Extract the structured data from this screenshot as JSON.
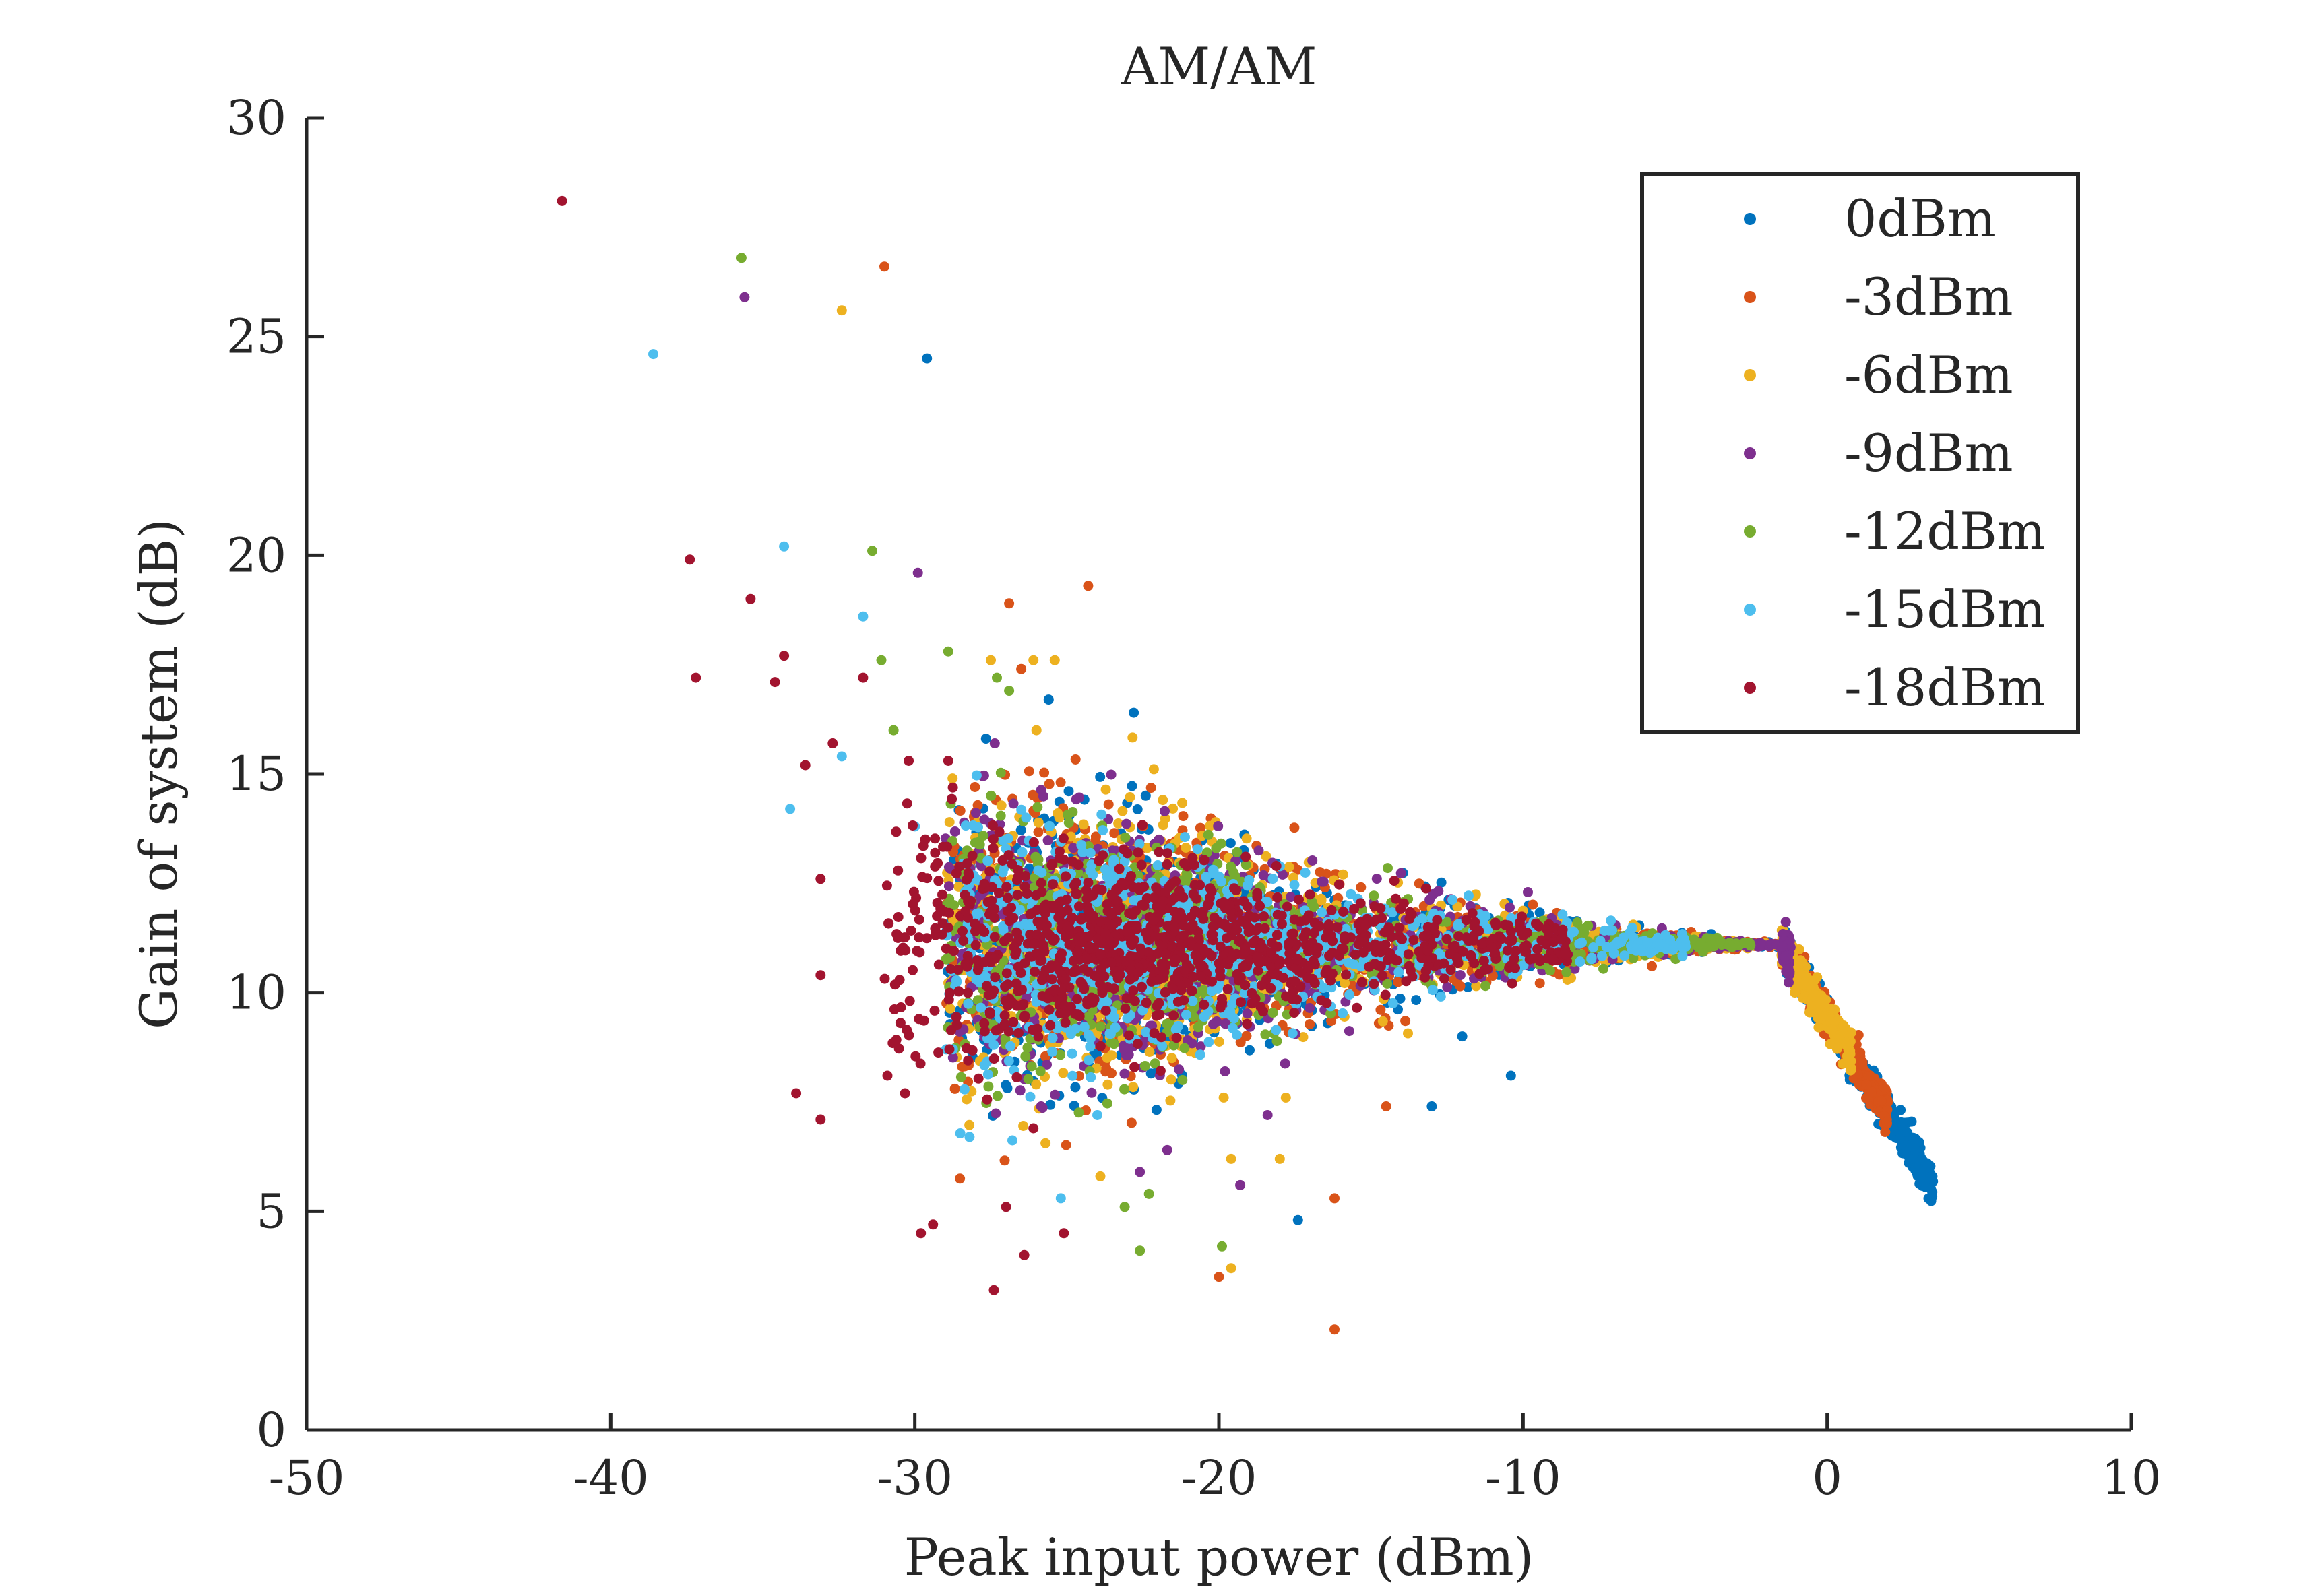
{
  "chart_data": {
    "type": "scatter",
    "title": "AM/AM",
    "xlabel": "Peak input power (dBm)",
    "ylabel": "Gain of system (dB)",
    "xlim": [
      -50,
      10
    ],
    "ylim": [
      0,
      30
    ],
    "xticks": [
      -50,
      -40,
      -30,
      -20,
      -10,
      0,
      10
    ],
    "yticks": [
      0,
      5,
      10,
      15,
      20,
      25,
      30
    ],
    "xtick_labels": [
      "-50",
      "-40",
      "-30",
      "-20",
      "-10",
      "0",
      "10"
    ],
    "ytick_labels": [
      "0",
      "5",
      "10",
      "15",
      "20",
      "25",
      "30"
    ],
    "grid": false,
    "legend_position": "top-right",
    "series": [
      {
        "name": "0dBm",
        "color": "#0072BD",
        "outliers": [
          [
            -29.6,
            24.5
          ],
          [
            -25.6,
            16.7
          ],
          [
            -22.8,
            16.4
          ],
          [
            -17.4,
            4.8
          ],
          [
            -10.4,
            8.1
          ],
          [
            -13.0,
            7.4
          ],
          [
            -12.0,
            9.0
          ]
        ]
      },
      {
        "name": "-3dBm",
        "color": "#D95319",
        "outliers": [
          [
            -31.0,
            26.6
          ],
          [
            -24.3,
            19.3
          ],
          [
            -26.9,
            18.9
          ],
          [
            -16.2,
            2.3
          ],
          [
            -16.2,
            5.3
          ],
          [
            -20.0,
            3.5
          ],
          [
            -14.5,
            7.4
          ],
          [
            -26.5,
            17.4
          ]
        ]
      },
      {
        "name": "-6dBm",
        "color": "#EDB120",
        "outliers": [
          [
            -32.4,
            25.6
          ],
          [
            -26.1,
            17.6
          ],
          [
            -25.4,
            17.6
          ],
          [
            -26.0,
            16.0
          ],
          [
            -19.6,
            3.7
          ],
          [
            -23.9,
            5.8
          ],
          [
            -18.0,
            6.2
          ],
          [
            -19.6,
            6.2
          ],
          [
            -17.8,
            7.6
          ],
          [
            -27.5,
            17.6
          ]
        ]
      },
      {
        "name": "-9dBm",
        "color": "#7E2F8E",
        "outliers": [
          [
            -35.6,
            25.9
          ],
          [
            -29.9,
            19.6
          ],
          [
            -22.6,
            5.9
          ],
          [
            -19.3,
            5.6
          ],
          [
            -21.7,
            6.4
          ],
          [
            -18.4,
            7.2
          ],
          [
            -19.8,
            8.2
          ]
        ]
      },
      {
        "name": "-12dBm",
        "color": "#77AC30",
        "outliers": [
          [
            -35.7,
            26.8
          ],
          [
            -31.4,
            20.1
          ],
          [
            -31.1,
            17.6
          ],
          [
            -28.9,
            17.8
          ],
          [
            -27.3,
            17.2
          ],
          [
            -26.9,
            16.9
          ],
          [
            -30.7,
            16.0
          ],
          [
            -22.6,
            4.1
          ],
          [
            -23.1,
            5.1
          ],
          [
            -19.9,
            4.2
          ],
          [
            -22.3,
            5.4
          ],
          [
            -21.2,
            8.0
          ]
        ]
      },
      {
        "name": "-15dBm",
        "color": "#4DBEEE",
        "outliers": [
          [
            -38.6,
            24.6
          ],
          [
            -34.3,
            20.2
          ],
          [
            -31.7,
            18.6
          ],
          [
            -34.1,
            14.2
          ],
          [
            -32.4,
            15.4
          ],
          [
            -25.2,
            5.3
          ],
          [
            -28.2,
            6.7
          ],
          [
            -24.0,
            7.2
          ],
          [
            -30.0,
            13.8
          ]
        ]
      },
      {
        "name": "-18dBm",
        "color": "#A2142F",
        "outliers": [
          [
            -41.6,
            28.1
          ],
          [
            -37.4,
            19.9
          ],
          [
            -35.4,
            19.0
          ],
          [
            -37.2,
            17.2
          ],
          [
            -34.3,
            17.7
          ],
          [
            -34.6,
            17.1
          ],
          [
            -31.7,
            17.2
          ],
          [
            -32.7,
            15.7
          ],
          [
            -33.6,
            15.2
          ],
          [
            -33.1,
            12.6
          ],
          [
            -33.1,
            10.4
          ],
          [
            -33.9,
            7.7
          ],
          [
            -33.1,
            7.1
          ],
          [
            -30.9,
            8.1
          ],
          [
            -29.8,
            4.5
          ],
          [
            -29.4,
            4.7
          ],
          [
            -27.4,
            3.2
          ],
          [
            -26.4,
            4.0
          ],
          [
            -25.1,
            4.5
          ],
          [
            -27.0,
            5.1
          ],
          [
            -26.1,
            6.9
          ],
          [
            -30.2,
            15.3
          ],
          [
            -28.9,
            15.3
          ]
        ]
      }
    ]
  }
}
